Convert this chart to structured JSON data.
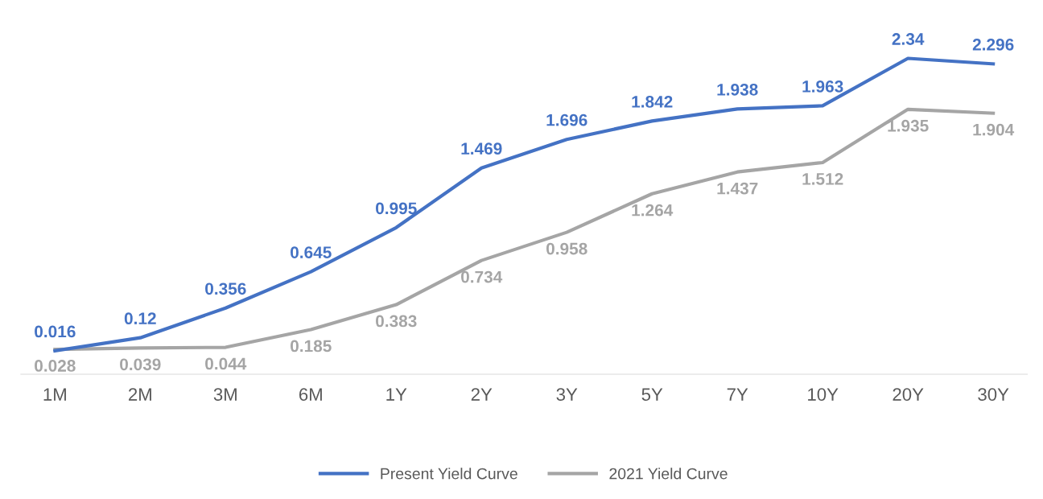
{
  "chart_data": {
    "type": "line",
    "categories": [
      "1M",
      "2M",
      "3M",
      "6M",
      "1Y",
      "2Y",
      "3Y",
      "5Y",
      "7Y",
      "10Y",
      "20Y",
      "30Y"
    ],
    "series": [
      {
        "name": "Present Yield Curve",
        "color": "#4472c4",
        "values": [
          0.016,
          0.12,
          0.356,
          0.645,
          0.995,
          1.469,
          1.696,
          1.842,
          1.938,
          1.963,
          2.34,
          2.296
        ]
      },
      {
        "name": "2021 Yield Curve",
        "color": "#a5a5a5",
        "values": [
          0.028,
          0.039,
          0.044,
          0.185,
          0.383,
          0.734,
          0.958,
          1.264,
          1.437,
          1.512,
          1.935,
          1.904
        ]
      }
    ],
    "tick_labels": "x",
    "data_labels": true,
    "grid": false,
    "legend": "bottom",
    "marker": "none",
    "line_style": "solid"
  }
}
